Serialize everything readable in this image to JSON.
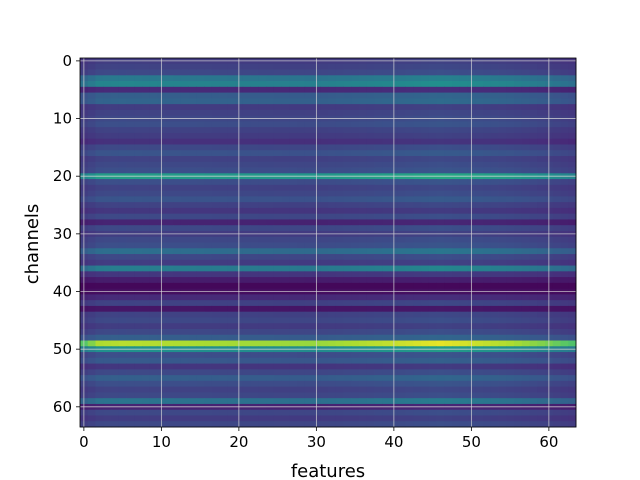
{
  "chart_data": {
    "type": "heatmap",
    "colormap": "viridis",
    "xlabel": "features",
    "ylabel": "channels",
    "xlim": [
      -0.5,
      63.5
    ],
    "ylim": [
      63.5,
      -0.5
    ],
    "n_rows": 64,
    "n_cols": 64,
    "y_inverted": true,
    "grid": true,
    "x_ticks": [
      0,
      10,
      20,
      30,
      40,
      50,
      60
    ],
    "y_ticks": [
      0,
      10,
      20,
      30,
      40,
      50,
      60
    ],
    "x_tick_labels": [
      "0",
      "10",
      "20",
      "30",
      "40",
      "50",
      "60"
    ],
    "y_tick_labels": [
      "0",
      "10",
      "20",
      "30",
      "40",
      "50",
      "60"
    ],
    "row_values": [
      0.18,
      0.2,
      0.22,
      0.4,
      0.45,
      0.12,
      0.3,
      0.32,
      0.18,
      0.2,
      0.22,
      0.24,
      0.2,
      0.18,
      0.14,
      0.22,
      0.26,
      0.2,
      0.22,
      0.24,
      0.55,
      0.24,
      0.2,
      0.22,
      0.26,
      0.2,
      0.16,
      0.22,
      0.1,
      0.22,
      0.18,
      0.22,
      0.24,
      0.36,
      0.22,
      0.18,
      0.42,
      0.16,
      0.08,
      0.02,
      0.04,
      0.12,
      0.2,
      0.06,
      0.2,
      0.22,
      0.18,
      0.22,
      0.3,
      0.88,
      0.5,
      0.24,
      0.28,
      0.16,
      0.22,
      0.3,
      0.24,
      0.2,
      0.22,
      0.38,
      0.1,
      0.22,
      0.18,
      0.22
    ],
    "column_profile": {
      "points": [
        [
          0,
          0.84
        ],
        [
          2,
          1.0
        ],
        [
          5,
          1.02
        ],
        [
          20,
          0.98
        ],
        [
          30,
          0.96
        ],
        [
          40,
          1.04
        ],
        [
          46,
          1.1
        ],
        [
          55,
          1.0
        ],
        [
          60,
          0.9
        ],
        [
          63,
          0.82
        ]
      ],
      "edge_left": 0.86,
      "edge_right": 0.82
    }
  }
}
